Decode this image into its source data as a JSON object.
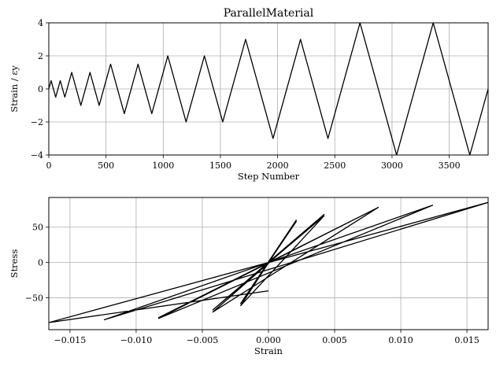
{
  "chart_data": [
    {
      "type": "line",
      "title": "ParallelMaterial",
      "xlabel": "Step Number",
      "ylabel": "Strain / εy",
      "xlim": [
        0,
        3840
      ],
      "ylim": [
        -4,
        4
      ],
      "xticks": [
        0,
        500,
        1000,
        1500,
        2000,
        2500,
        3000,
        3500
      ],
      "yticks": [
        -4,
        -2,
        0,
        2,
        4
      ],
      "xtick_labels": [
        "0",
        "500",
        "1000",
        "1500",
        "2000",
        "2500",
        "3000",
        "3500"
      ],
      "ytick_labels": [
        "−4",
        "−2",
        "0",
        "2",
        "4"
      ],
      "grid": true,
      "color": "#000000",
      "x": [
        0,
        20,
        60,
        100,
        140,
        200,
        280,
        360,
        440,
        540,
        660,
        780,
        900,
        1040,
        1200,
        1360,
        1520,
        1720,
        1960,
        2200,
        2440,
        2720,
        3040,
        3360,
        3680,
        3840
      ],
      "y": [
        0,
        0.5,
        -0.5,
        0.5,
        -0.5,
        1,
        -1,
        1,
        -1,
        1.5,
        -1.5,
        1.5,
        -1.5,
        2,
        -2,
        2,
        -2,
        3,
        -3,
        3,
        -3,
        4,
        -4,
        4,
        -4,
        0
      ]
    },
    {
      "type": "line",
      "title": "",
      "xlabel": "Strain",
      "ylabel": "Stress",
      "xlim": [
        -0.0166,
        0.0166
      ],
      "ylim": [
        -95,
        92
      ],
      "xticks": [
        -0.015,
        -0.01,
        -0.005,
        0.0,
        0.005,
        0.01,
        0.015
      ],
      "yticks": [
        -50,
        0,
        50
      ],
      "xtick_labels": [
        "−0.015",
        "−0.010",
        "−0.005",
        "0.000",
        "0.005",
        "0.010",
        "0.015"
      ],
      "ytick_labels": [
        "−50",
        "0",
        "50"
      ],
      "grid": true,
      "color": "#000000",
      "x": [
        0,
        0.0021,
        -0.0021,
        0.0021,
        -0.0021,
        0.0042,
        -0.0042,
        0.0042,
        -0.0042,
        0.0083,
        -0.0083,
        0.0083,
        -0.0083,
        0.0124,
        -0.0124,
        0.0124,
        -0.0124,
        0.0166,
        -0.0166,
        0.0
      ],
      "y": [
        0,
        58,
        -58,
        60,
        -61,
        66,
        -67,
        68,
        -70,
        78,
        -78,
        78,
        -79,
        81,
        -81,
        81,
        -81,
        85,
        -85,
        -40
      ]
    }
  ]
}
